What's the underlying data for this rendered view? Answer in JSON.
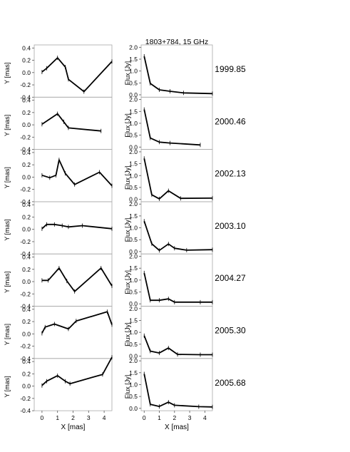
{
  "figure": {
    "title": "1803+784, 15 GHz",
    "left_ylabel": "Y [mas]",
    "right_ylabel": "Flux [Jy]",
    "xlabel": "X [mas]",
    "line_color": "#000000",
    "frame_color": "#a8a8a8"
  },
  "chart_data": [
    {
      "type": "line",
      "epoch": "1999.85",
      "position": {
        "x": [
          0,
          0.3,
          1.0,
          1.5,
          1.7,
          2.7,
          4.5
        ],
        "y": [
          0.01,
          0.07,
          0.24,
          0.09,
          -0.11,
          -0.31,
          0.18
        ],
        "xlim": [
          -0.5,
          4.5
        ],
        "ylim": [
          -0.4,
          0.45
        ],
        "yticks": [
          0.4,
          0.2,
          0.0,
          -0.2,
          -0.4
        ],
        "yticklabels": [
          "0.4",
          "0.2",
          "0.0",
          "-0.2",
          "-0.4"
        ]
      },
      "flux": {
        "x": [
          0,
          0.4,
          1.0,
          1.7,
          2.6,
          4.5
        ],
        "y": [
          1.62,
          0.48,
          0.21,
          0.15,
          0.08,
          0.05
        ],
        "xlim": [
          -0.2,
          4.5
        ],
        "ylim": [
          -0.1,
          2.1
        ],
        "yticks": [
          2.0,
          1.5,
          1.0,
          0.5,
          0.0
        ],
        "yticklabels": [
          "2.0",
          "1.5",
          "1.0",
          "0.5",
          "0.0"
        ]
      }
    },
    {
      "type": "line",
      "epoch": "2000.46",
      "position": {
        "x": [
          0,
          1.0,
          1.4,
          1.7,
          3.8
        ],
        "y": [
          0.01,
          0.18,
          0.05,
          -0.05,
          -0.1
        ],
        "xlim": [
          -0.5,
          4.5
        ],
        "ylim": [
          -0.4,
          0.45
        ],
        "yticks": [
          0.4,
          0.2,
          0.0,
          -0.2,
          -0.4
        ],
        "yticklabels": [
          "0.4",
          "0.2",
          "0.0",
          "-0.2",
          "-0.4"
        ]
      },
      "flux": {
        "x": [
          0,
          0.4,
          1.0,
          1.7,
          3.7
        ],
        "y": [
          1.58,
          0.38,
          0.21,
          0.17,
          0.09
        ],
        "xlim": [
          -0.2,
          4.5
        ],
        "ylim": [
          -0.1,
          2.1
        ],
        "yticks": [
          2.0,
          1.5,
          1.0,
          0.5,
          0.0
        ],
        "yticklabels": [
          "2.0",
          "1.5",
          "1.0",
          "0.5",
          "0.0"
        ]
      }
    },
    {
      "type": "line",
      "epoch": "2002.13",
      "position": {
        "x": [
          0,
          0.5,
          0.9,
          1.1,
          1.5,
          2.1,
          3.7,
          4.5
        ],
        "y": [
          0.03,
          -0.01,
          0.03,
          0.28,
          0.06,
          -0.12,
          0.08,
          -0.14
        ],
        "xlim": [
          -0.5,
          4.5
        ],
        "ylim": [
          -0.4,
          0.45
        ],
        "yticks": [
          0.4,
          0.2,
          0.0,
          -0.2,
          -0.4
        ],
        "yticklabels": [
          "0.4",
          "0.2",
          "0.0",
          "-0.2",
          "-0.4"
        ]
      },
      "flux": {
        "x": [
          0,
          0.5,
          1.0,
          1.6,
          2.4,
          4.5
        ],
        "y": [
          1.72,
          0.19,
          0.02,
          0.36,
          0.04,
          0.05
        ],
        "xlim": [
          -0.2,
          4.5
        ],
        "ylim": [
          -0.1,
          2.1
        ],
        "yticks": [
          2.0,
          1.5,
          1.0,
          0.5,
          0.0
        ],
        "yticklabels": [
          "2.0",
          "1.5",
          "1.0",
          "0.5",
          "0.0"
        ]
      }
    },
    {
      "type": "line",
      "epoch": "2003.10",
      "position": {
        "x": [
          0,
          0.3,
          0.8,
          1.3,
          1.7,
          2.6,
          4.5
        ],
        "y": [
          0.01,
          0.08,
          0.08,
          0.06,
          0.04,
          0.06,
          0.01
        ],
        "xlim": [
          -0.5,
          4.5
        ],
        "ylim": [
          -0.4,
          0.45
        ],
        "yticks": [
          0.4,
          0.2,
          0.0,
          -0.2,
          -0.4
        ],
        "yticklabels": [
          "0.4",
          "0.2",
          "0.0",
          "-0.2",
          "-0.4"
        ]
      },
      "flux": {
        "x": [
          0,
          0.5,
          1.0,
          1.6,
          2.0,
          2.8,
          4.5
        ],
        "y": [
          1.28,
          0.33,
          0.05,
          0.32,
          0.14,
          0.06,
          0.08
        ],
        "xlim": [
          -0.2,
          4.5
        ],
        "ylim": [
          -0.1,
          2.1
        ],
        "yticks": [
          2.0,
          1.5,
          1.0,
          0.5,
          0.0
        ],
        "yticklabels": [
          "2.0",
          "1.5",
          "1.0",
          "0.5",
          "0.0"
        ]
      }
    },
    {
      "type": "line",
      "epoch": "2004.27",
      "position": {
        "x": [
          0,
          0.4,
          1.1,
          1.6,
          2.1,
          3.8,
          4.5
        ],
        "y": [
          0.02,
          0.02,
          0.22,
          0.01,
          -0.16,
          0.22,
          -0.07
        ],
        "xlim": [
          -0.5,
          4.5
        ],
        "ylim": [
          -0.4,
          0.45
        ],
        "yticks": [
          0.4,
          0.2,
          0.0,
          -0.2,
          -0.4
        ],
        "yticklabels": [
          "0.4",
          "0.2",
          "0.0",
          "-0.2",
          "-0.4"
        ]
      },
      "flux": {
        "x": [
          0,
          0.4,
          1.0,
          1.6,
          2.0,
          3.7,
          4.5
        ],
        "y": [
          1.3,
          0.15,
          0.15,
          0.21,
          0.07,
          0.07,
          0.07
        ],
        "xlim": [
          -0.2,
          4.5
        ],
        "ylim": [
          -0.1,
          2.1
        ],
        "yticks": [
          2.0,
          1.5,
          1.0,
          0.5,
          0.0
        ],
        "yticklabels": [
          "2.0",
          "1.5",
          "1.0",
          "0.5",
          "0.0"
        ]
      }
    },
    {
      "type": "line",
      "epoch": "2005.30",
      "position": {
        "x": [
          0,
          0.2,
          0.8,
          1.7,
          2.2,
          4.2,
          4.5
        ],
        "y": [
          0.01,
          0.11,
          0.16,
          0.08,
          0.21,
          0.36,
          0.15
        ],
        "xlim": [
          -0.5,
          4.5
        ],
        "ylim": [
          -0.4,
          0.45
        ],
        "yticks": [
          0.4,
          0.2,
          0.0,
          -0.2,
          -0.4
        ],
        "yticklabels": [
          "0.4",
          "0.2",
          "0.0",
          "-0.2",
          "-0.4"
        ]
      },
      "flux": {
        "x": [
          0,
          0.4,
          1.0,
          1.6,
          2.2,
          3.7,
          4.5
        ],
        "y": [
          0.86,
          0.21,
          0.13,
          0.34,
          0.07,
          0.06,
          0.06
        ],
        "xlim": [
          -0.2,
          4.5
        ],
        "ylim": [
          -0.1,
          2.1
        ],
        "yticks": [
          2.0,
          1.5,
          1.0,
          0.5,
          0.0
        ],
        "yticklabels": [
          "2.0",
          "1.5",
          "1.0",
          "0.5",
          "0.0"
        ]
      }
    },
    {
      "type": "line",
      "epoch": "2005.68",
      "position": {
        "x": [
          0,
          0.3,
          1.0,
          1.5,
          1.8,
          3.9,
          4.5
        ],
        "y": [
          0.01,
          0.08,
          0.17,
          0.08,
          0.04,
          0.19,
          0.47
        ],
        "xlim": [
          -0.5,
          4.5
        ],
        "ylim": [
          -0.4,
          0.45
        ],
        "yticks": [
          0.4,
          0.2,
          0.0,
          -0.2,
          -0.4
        ],
        "yticklabels": [
          "0.4",
          "0.2",
          "0.0",
          "-0.2",
          "-0.4"
        ]
      },
      "flux": {
        "x": [
          0,
          0.4,
          1.0,
          1.6,
          2.0,
          3.6,
          4.5
        ],
        "y": [
          1.45,
          0.17,
          0.08,
          0.26,
          0.13,
          0.07,
          0.06
        ],
        "xlim": [
          -0.2,
          4.5
        ],
        "ylim": [
          -0.1,
          2.1
        ],
        "yticks": [
          2.0,
          1.5,
          1.0,
          0.5,
          0.0
        ],
        "yticklabels": [
          "2.0",
          "1.5",
          "1.0",
          "0.5",
          "0.0"
        ]
      }
    }
  ],
  "x_axis": {
    "ticks": [
      0,
      1,
      2,
      3,
      4
    ],
    "ticklabels": [
      "0",
      "1",
      "2",
      "3",
      "4"
    ]
  }
}
